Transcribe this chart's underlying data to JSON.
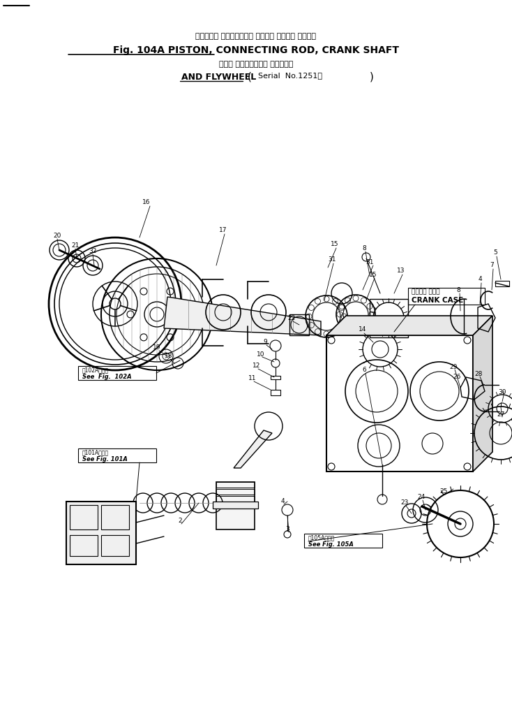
{
  "bg_color": "#ffffff",
  "fig_width": 7.34,
  "fig_height": 10.15,
  "dpi": 100,
  "title_line1": "ピストン， コネクティング ロッド， クランク シャフト",
  "title_line2": "Fig. 104A PISTON, CONNECTING ROD, CRANK SHAFT",
  "title_line3_jp": "および フライホイール （適用号機",
  "title_line3_en": "AND FLYWHEEL",
  "title_serial": "Serial  No.1251～",
  "crank_case_jp": "クランク ケース",
  "crank_case_en": "CRANK CASE",
  "ref_102a_jp": "第102A図参照",
  "ref_102a_en": "See  Fig.  102A",
  "ref_101a_jp": "第101A図参照",
  "ref_101a_en": "See Fig. 101A",
  "ref_105a_jp": "第105A図参照",
  "ref_105a_en": "See Fig. 105A"
}
